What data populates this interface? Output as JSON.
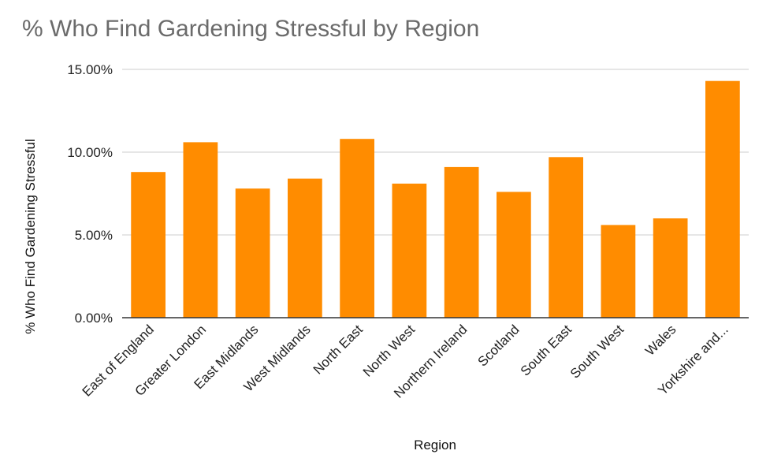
{
  "chart_data": {
    "type": "bar",
    "title": "% Who Find Gardening Stressful by Region",
    "xlabel": "Region",
    "ylabel": "% Who Find Gardening Stressful",
    "categories": [
      "East of England",
      "Greater London",
      "East Midlands",
      "West Midlands",
      "North East",
      "North West",
      "Northern Ireland",
      "Scotland",
      "South East",
      "South West",
      "Wales",
      "Yorkshire and..."
    ],
    "series": [
      {
        "values": [
          8.8,
          10.6,
          7.8,
          8.4,
          10.8,
          8.1,
          9.1,
          7.6,
          9.7,
          5.6,
          6.0,
          14.3
        ]
      }
    ],
    "ylim": [
      0,
      15
    ],
    "yticks": [
      0,
      5,
      10,
      15
    ],
    "ytick_labels": [
      "0.00%",
      "5.00%",
      "10.00%",
      "15.00%"
    ],
    "grid": true,
    "bar_color": "#ff8c00",
    "gridline_color": "#cccccc",
    "baseline_color": "#333333"
  }
}
